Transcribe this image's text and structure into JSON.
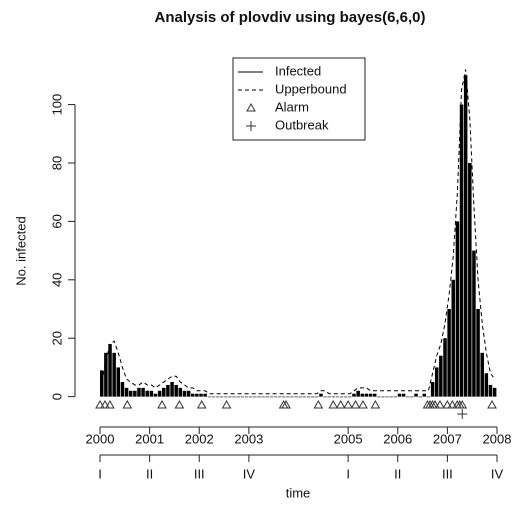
{
  "chart_data": {
    "type": "bar",
    "title": "Analysis of plovdiv using bayes(6,6,0)",
    "y_label": "No. infected",
    "x_label": "time",
    "x": [
      2000.0,
      2000.083,
      2000.167,
      2000.25,
      2000.333,
      2000.417,
      2000.5,
      2000.583,
      2000.667,
      2000.75,
      2000.833,
      2000.917,
      2001.0,
      2001.083,
      2001.167,
      2001.25,
      2001.333,
      2001.417,
      2001.5,
      2001.583,
      2001.667,
      2001.75,
      2001.833,
      2001.917,
      2002.0,
      2002.083,
      2002.167,
      2002.25,
      2002.333,
      2002.417,
      2002.5,
      2002.583,
      2002.667,
      2002.75,
      2002.833,
      2002.917,
      2003.0,
      2003.083,
      2003.167,
      2003.25,
      2003.333,
      2003.417,
      2003.5,
      2003.583,
      2003.667,
      2003.75,
      2003.833,
      2003.917,
      2004.0,
      2004.083,
      2004.167,
      2004.25,
      2004.333,
      2004.417,
      2004.5,
      2004.583,
      2004.667,
      2004.75,
      2004.833,
      2004.917,
      2005.0,
      2005.083,
      2005.167,
      2005.25,
      2005.333,
      2005.417,
      2005.5,
      2005.583,
      2005.667,
      2005.75,
      2005.833,
      2005.917,
      2006.0,
      2006.083,
      2006.167,
      2006.25,
      2006.333,
      2006.417,
      2006.5,
      2006.583,
      2006.667,
      2006.75,
      2006.833,
      2006.917,
      2007.0,
      2007.083,
      2007.167,
      2007.25,
      2007.333,
      2007.417,
      2007.5,
      2007.583,
      2007.667,
      2007.75,
      2007.833,
      2007.917
    ],
    "series": [
      {
        "name": "Infected",
        "color": "#000000",
        "style": "spikes",
        "values": [
          9,
          15,
          18,
          15,
          10,
          5,
          3,
          2,
          2,
          3,
          3,
          2,
          2,
          1,
          2,
          3,
          4,
          5,
          4,
          3,
          2,
          2,
          1,
          1,
          1,
          1,
          0,
          0,
          0,
          0,
          0,
          0,
          0,
          0,
          0,
          0,
          0,
          0,
          0,
          0,
          0,
          0,
          0,
          0,
          0,
          0,
          0,
          0,
          0,
          0,
          0,
          0,
          0,
          1,
          0,
          0,
          0,
          0,
          0,
          0,
          0,
          1,
          2,
          1,
          1,
          1,
          1,
          0,
          0,
          0,
          0,
          0,
          1,
          1,
          0,
          0,
          1,
          0,
          1,
          0,
          5,
          10,
          14,
          20,
          30,
          40,
          60,
          100,
          110,
          80,
          50,
          30,
          15,
          8,
          4,
          3
        ]
      },
      {
        "name": "Upperbound",
        "color": "#000000",
        "style": "dashed",
        "values": [
          5,
          12,
          18,
          19,
          15,
          10,
          6,
          5,
          4,
          4,
          5,
          4,
          4,
          3,
          4,
          5,
          6,
          7,
          7,
          5,
          4,
          3,
          3,
          2,
          2,
          2,
          1,
          1,
          1,
          1,
          1,
          1,
          1,
          1,
          1,
          1,
          1,
          1,
          1,
          1,
          1,
          1,
          1,
          1,
          1,
          1,
          1,
          1,
          1,
          1,
          1,
          1,
          1,
          2,
          2,
          1,
          1,
          1,
          1,
          1,
          1,
          2,
          3,
          3,
          3,
          2,
          2,
          2,
          2,
          2,
          2,
          2,
          2,
          2,
          2,
          2,
          2,
          2,
          2,
          2,
          8,
          14,
          18,
          25,
          35,
          48,
          70,
          105,
          112,
          95,
          65,
          40,
          25,
          15,
          8,
          6
        ]
      }
    ],
    "alarms": {
      "name": "Alarm",
      "x": [
        2000.0,
        2000.1,
        2000.2,
        2000.55,
        2001.25,
        2001.6,
        2002.05,
        2002.55,
        2003.7,
        2003.75,
        2004.4,
        2004.7,
        2004.85,
        2005.0,
        2005.15,
        2005.3,
        2005.55,
        2006.6,
        2006.65,
        2006.7,
        2006.75,
        2006.85,
        2007.0,
        2007.1,
        2007.2,
        2007.25,
        2007.3,
        2007.9
      ]
    },
    "outbreaks": {
      "name": "Outbreak",
      "x": [
        2007.3
      ]
    },
    "xlim": [
      2000,
      2008
    ],
    "ylim": [
      -8,
      118
    ],
    "yticks": [
      0,
      20,
      40,
      60,
      80,
      100
    ],
    "xticks": [
      2000,
      2001,
      2002,
      2003,
      2005,
      2006,
      2007,
      2008
    ],
    "xticks2": [
      {
        "value": 2000,
        "label": "I"
      },
      {
        "value": 2001,
        "label": "II"
      },
      {
        "value": 2002,
        "label": "III"
      },
      {
        "value": 2003,
        "label": "IV"
      },
      {
        "value": 2005,
        "label": "I"
      },
      {
        "value": 2006,
        "label": "II"
      },
      {
        "value": 2007,
        "label": "III"
      },
      {
        "value": 2008,
        "label": "IV"
      }
    ],
    "legend": "top"
  }
}
